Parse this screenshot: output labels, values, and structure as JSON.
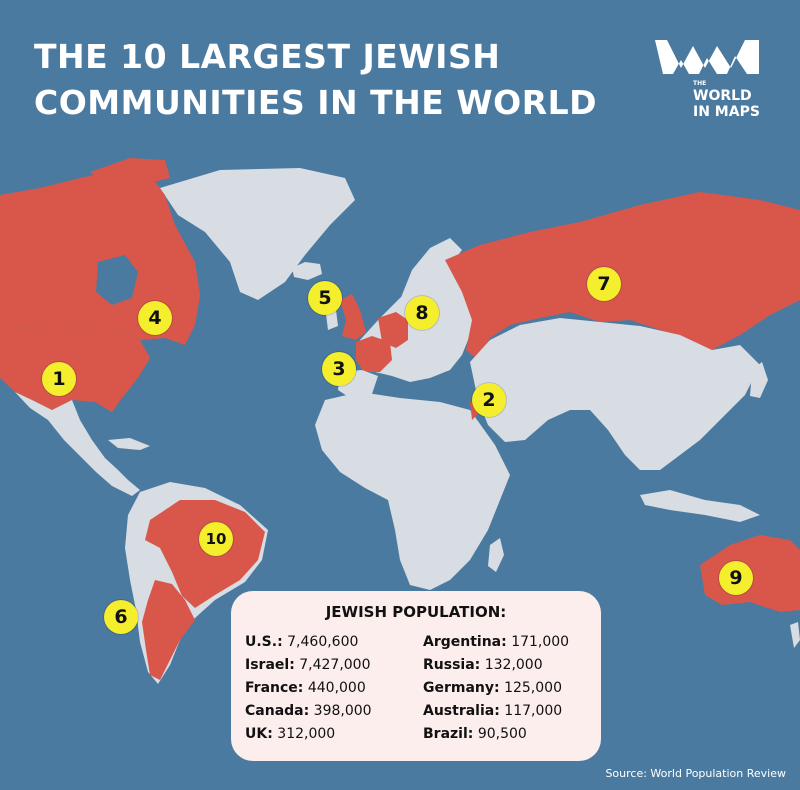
{
  "title": {
    "line1": "THE 10 LARGEST JEWISH",
    "line2": "COMMUNITIES IN THE WORLD"
  },
  "logo": {
    "small": "THE",
    "line1": "WORLD",
    "line2": "IN MAPS"
  },
  "colors": {
    "ocean": "#4b7aa0",
    "land": "#d7dde3",
    "highlight": "#d9574a",
    "marker": "#f4ee2c",
    "panel": "#fdeeee"
  },
  "markers": [
    {
      "label": "1",
      "country": "U.S."
    },
    {
      "label": "2",
      "country": "Israel"
    },
    {
      "label": "3",
      "country": "France"
    },
    {
      "label": "4",
      "country": "Canada"
    },
    {
      "label": "5",
      "country": "UK"
    },
    {
      "label": "6",
      "country": "Argentina"
    },
    {
      "label": "7",
      "country": "Russia"
    },
    {
      "label": "8",
      "country": "Germany"
    },
    {
      "label": "9",
      "country": "Australia"
    },
    {
      "label": "10",
      "country": "Brazil"
    }
  ],
  "legend": {
    "heading": "JEWISH POPULATION:",
    "left": [
      {
        "name": "U.S.:",
        "value": "7,460,600"
      },
      {
        "name": "Israel:",
        "value": "7,427,000"
      },
      {
        "name": "France:",
        "value": "440,000"
      },
      {
        "name": "Canada:",
        "value": "398,000"
      },
      {
        "name": "UK:",
        "value": "312,000"
      }
    ],
    "right": [
      {
        "name": "Argentina:",
        "value": "171,000"
      },
      {
        "name": "Russia:",
        "value": "132,000"
      },
      {
        "name": "Germany:",
        "value": "125,000"
      },
      {
        "name": "Australia:",
        "value": "117,000"
      },
      {
        "name": "Brazil:",
        "value": "90,500"
      }
    ]
  },
  "source": "Source: World Population Review"
}
